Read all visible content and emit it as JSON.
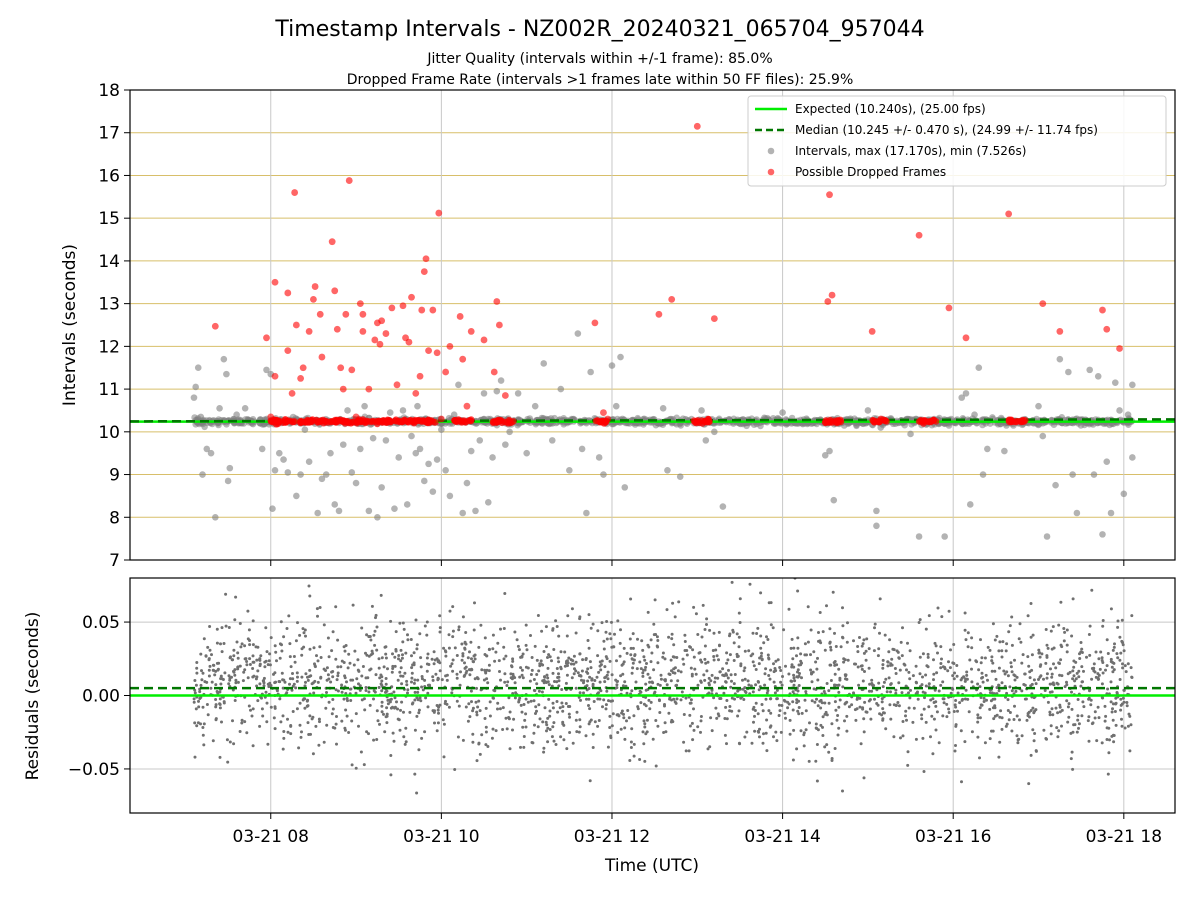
{
  "chart_data": [
    {
      "type": "scatter",
      "title": "Timestamp Intervals - NZ002R_20240321_065704_957044",
      "subtitle_lines": [
        "Jitter Quality (intervals within +/-1 frame): 85.0%",
        "Dropped Frame Rate (intervals >1 frames late within 50 FF files): 25.9%"
      ],
      "ylabel": "Intervals (seconds)",
      "ylim": [
        7,
        18
      ],
      "yticks": [
        "7",
        "8",
        "9",
        "10",
        "11",
        "12",
        "13",
        "14",
        "15",
        "16",
        "17",
        "18"
      ],
      "xlim_hours": [
        6.35,
        18.6
      ],
      "grid": true,
      "legend_position": "top-right",
      "colors": {
        "expected": "#00ee00",
        "median": "#007700",
        "intervals": "#808080",
        "dropped": "#ff0000",
        "hgrid": "#d8bf6a",
        "vgrid": "#c8c8c8"
      },
      "reference_lines": {
        "expected": 10.24,
        "median": 10.245
      },
      "legend": [
        "Expected (10.240s), (25.00 fps)",
        "Median (10.245 +/- 0.470 s), (24.99 +/- 11.74 fps)",
        "Intervals, max (17.170s), min (7.526s)",
        "Possible Dropped Frames"
      ],
      "series": [
        {
          "name": "Possible Dropped Frames",
          "points": [
            [
              7.35,
              12.47
            ],
            [
              7.95,
              12.2
            ],
            [
              8.05,
              13.5
            ],
            [
              8.05,
              11.3
            ],
            [
              8.2,
              11.9
            ],
            [
              8.2,
              13.25
            ],
            [
              8.25,
              10.9
            ],
            [
              8.28,
              15.6
            ],
            [
              8.3,
              12.5
            ],
            [
              8.35,
              11.25
            ],
            [
              8.38,
              11.5
            ],
            [
              8.45,
              12.35
            ],
            [
              8.5,
              13.1
            ],
            [
              8.52,
              13.4
            ],
            [
              8.58,
              12.75
            ],
            [
              8.6,
              11.75
            ],
            [
              8.72,
              14.45
            ],
            [
              8.75,
              13.3
            ],
            [
              8.78,
              12.4
            ],
            [
              8.82,
              11.5
            ],
            [
              8.85,
              11.0
            ],
            [
              8.88,
              12.75
            ],
            [
              8.92,
              15.88
            ],
            [
              8.95,
              11.45
            ],
            [
              9.05,
              13.0
            ],
            [
              9.08,
              12.35
            ],
            [
              9.08,
              12.75
            ],
            [
              9.15,
              11.0
            ],
            [
              9.22,
              12.15
            ],
            [
              9.25,
              12.55
            ],
            [
              9.28,
              12.05
            ],
            [
              9.3,
              12.6
            ],
            [
              9.35,
              12.3
            ],
            [
              9.42,
              12.9
            ],
            [
              9.48,
              11.1
            ],
            [
              9.55,
              12.95
            ],
            [
              9.58,
              12.2
            ],
            [
              9.62,
              12.1
            ],
            [
              9.65,
              13.15
            ],
            [
              9.7,
              10.9
            ],
            [
              9.75,
              11.3
            ],
            [
              9.77,
              12.85
            ],
            [
              9.8,
              13.75
            ],
            [
              9.82,
              14.05
            ],
            [
              9.85,
              11.9
            ],
            [
              9.9,
              12.85
            ],
            [
              9.95,
              11.85
            ],
            [
              9.97,
              15.12
            ],
            [
              10.05,
              11.4
            ],
            [
              10.1,
              12.0
            ],
            [
              10.22,
              12.7
            ],
            [
              10.25,
              11.7
            ],
            [
              10.3,
              10.6
            ],
            [
              10.35,
              12.35
            ],
            [
              10.5,
              12.15
            ],
            [
              10.62,
              11.4
            ],
            [
              10.65,
              13.05
            ],
            [
              10.68,
              12.5
            ],
            [
              10.75,
              10.85
            ],
            [
              11.8,
              12.55
            ],
            [
              11.9,
              10.45
            ],
            [
              12.55,
              12.75
            ],
            [
              12.7,
              13.1
            ],
            [
              13.0,
              17.15
            ],
            [
              13.2,
              12.65
            ],
            [
              14.53,
              13.05
            ],
            [
              14.55,
              15.55
            ],
            [
              14.58,
              13.2
            ],
            [
              15.05,
              12.35
            ],
            [
              15.6,
              14.6
            ],
            [
              15.95,
              12.9
            ],
            [
              16.15,
              12.2
            ],
            [
              16.65,
              15.1
            ],
            [
              17.05,
              13.0
            ],
            [
              17.25,
              12.35
            ],
            [
              17.75,
              12.85
            ],
            [
              17.8,
              12.4
            ],
            [
              17.95,
              11.95
            ],
            [
              8.0,
              10.35
            ],
            [
              9.0,
              10.35
            ],
            [
              10.0,
              10.3
            ],
            [
              11.95,
              10.3
            ]
          ]
        },
        {
          "name": "Possible Dropped Frames",
          "clusters_on_median": [
            [
              8.0,
              9.95
            ],
            [
              10.15,
              10.35
            ],
            [
              10.6,
              10.85
            ],
            [
              11.8,
              11.95
            ],
            [
              12.95,
              13.15
            ],
            [
              14.5,
              14.72
            ],
            [
              15.05,
              15.22
            ],
            [
              15.6,
              15.8
            ],
            [
              16.65,
              16.85
            ]
          ]
        },
        {
          "name": "Intervals, max (17.170s), min (7.526s)",
          "scattered_points": [
            [
              7.1,
              10.8
            ],
            [
              7.12,
              11.05
            ],
            [
              7.15,
              11.5
            ],
            [
              7.18,
              10.35
            ],
            [
              7.2,
              9.0
            ],
            [
              7.25,
              9.6
            ],
            [
              7.3,
              9.5
            ],
            [
              7.35,
              8.0
            ],
            [
              7.4,
              10.55
            ],
            [
              7.45,
              11.7
            ],
            [
              7.48,
              11.35
            ],
            [
              7.5,
              8.85
            ],
            [
              7.52,
              9.15
            ],
            [
              7.6,
              10.4
            ],
            [
              7.7,
              10.55
            ],
            [
              7.78,
              10.2
            ],
            [
              7.9,
              9.6
            ],
            [
              7.95,
              11.45
            ],
            [
              8.0,
              11.35
            ],
            [
              8.02,
              8.2
            ],
            [
              8.05,
              9.1
            ],
            [
              8.1,
              9.5
            ],
            [
              8.15,
              9.35
            ],
            [
              8.2,
              9.05
            ],
            [
              8.3,
              8.5
            ],
            [
              8.35,
              9.0
            ],
            [
              8.4,
              10.05
            ],
            [
              8.45,
              9.3
            ],
            [
              8.55,
              8.1
            ],
            [
              8.6,
              8.9
            ],
            [
              8.65,
              9.0
            ],
            [
              8.7,
              9.5
            ],
            [
              8.75,
              8.3
            ],
            [
              8.8,
              8.15
            ],
            [
              8.85,
              9.7
            ],
            [
              8.9,
              10.5
            ],
            [
              8.95,
              9.05
            ],
            [
              9.0,
              8.8
            ],
            [
              9.05,
              9.6
            ],
            [
              9.1,
              10.6
            ],
            [
              9.15,
              8.15
            ],
            [
              9.2,
              9.85
            ],
            [
              9.25,
              8.0
            ],
            [
              9.3,
              8.7
            ],
            [
              9.35,
              9.8
            ],
            [
              9.4,
              10.45
            ],
            [
              9.45,
              8.2
            ],
            [
              9.5,
              9.4
            ],
            [
              9.55,
              10.5
            ],
            [
              9.6,
              8.3
            ],
            [
              9.65,
              9.9
            ],
            [
              9.7,
              9.5
            ],
            [
              9.72,
              10.6
            ],
            [
              9.75,
              9.6
            ],
            [
              9.8,
              8.85
            ],
            [
              9.85,
              9.25
            ],
            [
              9.9,
              8.6
            ],
            [
              9.95,
              9.35
            ],
            [
              10.0,
              10.05
            ],
            [
              10.05,
              9.1
            ],
            [
              10.1,
              8.5
            ],
            [
              10.15,
              10.4
            ],
            [
              10.2,
              11.1
            ],
            [
              10.25,
              8.1
            ],
            [
              10.3,
              8.8
            ],
            [
              10.35,
              9.55
            ],
            [
              10.4,
              8.15
            ],
            [
              10.45,
              9.8
            ],
            [
              10.5,
              10.9
            ],
            [
              10.55,
              8.35
            ],
            [
              10.6,
              9.4
            ],
            [
              10.65,
              10.95
            ],
            [
              10.7,
              11.2
            ],
            [
              10.75,
              9.7
            ],
            [
              10.8,
              10.0
            ],
            [
              10.9,
              10.9
            ],
            [
              11.0,
              9.5
            ],
            [
              11.1,
              10.6
            ],
            [
              11.2,
              11.6
            ],
            [
              11.25,
              10.2
            ],
            [
              11.3,
              9.8
            ],
            [
              11.4,
              11.0
            ],
            [
              11.5,
              9.1
            ],
            [
              11.55,
              10.3
            ],
            [
              11.6,
              12.3
            ],
            [
              11.65,
              9.6
            ],
            [
              11.7,
              8.1
            ],
            [
              11.75,
              11.4
            ],
            [
              11.85,
              9.4
            ],
            [
              11.9,
              9.0
            ],
            [
              12.0,
              11.55
            ],
            [
              12.05,
              10.6
            ],
            [
              12.1,
              11.75
            ],
            [
              12.15,
              8.7
            ],
            [
              12.6,
              10.55
            ],
            [
              12.65,
              9.1
            ],
            [
              12.8,
              8.95
            ],
            [
              13.05,
              10.5
            ],
            [
              13.1,
              9.8
            ],
            [
              13.2,
              10.0
            ],
            [
              13.3,
              8.25
            ],
            [
              14.0,
              10.45
            ],
            [
              14.5,
              9.45
            ],
            [
              14.55,
              9.55
            ],
            [
              14.6,
              8.4
            ],
            [
              15.0,
              10.5
            ],
            [
              15.1,
              7.8
            ],
            [
              15.1,
              8.15
            ],
            [
              15.15,
              10.1
            ],
            [
              15.5,
              9.95
            ],
            [
              15.6,
              7.55
            ],
            [
              15.9,
              7.55
            ],
            [
              16.1,
              10.8
            ],
            [
              16.15,
              10.9
            ],
            [
              16.2,
              8.3
            ],
            [
              16.25,
              10.4
            ],
            [
              16.3,
              11.5
            ],
            [
              16.35,
              9.0
            ],
            [
              16.4,
              9.6
            ],
            [
              16.6,
              9.55
            ],
            [
              17.0,
              10.6
            ],
            [
              17.05,
              9.9
            ],
            [
              17.1,
              7.55
            ],
            [
              17.2,
              8.75
            ],
            [
              17.25,
              11.7
            ],
            [
              17.35,
              11.4
            ],
            [
              17.4,
              9.0
            ],
            [
              17.45,
              8.1
            ],
            [
              17.6,
              11.45
            ],
            [
              17.65,
              9.0
            ],
            [
              17.7,
              11.3
            ],
            [
              17.75,
              7.6
            ],
            [
              17.8,
              9.3
            ],
            [
              17.85,
              8.1
            ],
            [
              17.9,
              11.15
            ],
            [
              17.95,
              10.5
            ],
            [
              18.0,
              8.55
            ],
            [
              18.05,
              10.4
            ],
            [
              18.1,
              11.1
            ],
            [
              18.1,
              9.4
            ]
          ]
        }
      ]
    },
    {
      "type": "scatter",
      "ylabel": "Residuals (seconds)",
      "xlabel": "Time (UTC)",
      "ylim": [
        -0.08,
        0.08
      ],
      "yticks": [
        "−0.05",
        "0.00",
        "0.05"
      ],
      "ytick_values": [
        -0.05,
        0.0,
        0.05
      ],
      "xticks": [
        "03-21 08",
        "03-21 10",
        "03-21 12",
        "03-21 14",
        "03-21 16",
        "03-21 18"
      ],
      "xtick_hours": [
        8,
        10,
        12,
        14,
        16,
        18
      ],
      "xlim_hours": [
        6.35,
        18.6
      ],
      "reference_lines": {
        "expected": 0.0,
        "median": 0.005
      },
      "points_description_count": 2600,
      "residual_range": [
        -0.075,
        0.08
      ]
    }
  ]
}
